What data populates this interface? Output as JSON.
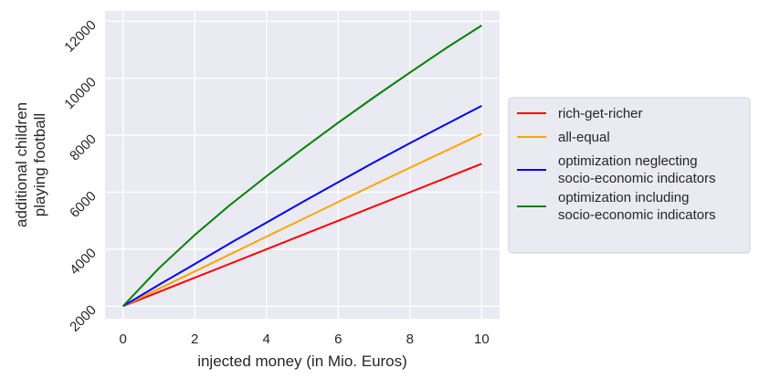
{
  "chart_data": {
    "type": "line",
    "xlabel": "injected money (in Mio. Euros)",
    "ylabel": [
      "additional children",
      "playing football"
    ],
    "xlim": [
      -0.5,
      10.5
    ],
    "ylim": [
      1560,
      12360
    ],
    "xticks": [
      0,
      2,
      4,
      6,
      8,
      10
    ],
    "yticks": [
      2000,
      4000,
      6000,
      8000,
      10000,
      12000
    ],
    "grid": true,
    "legend_position": "right",
    "background": "#eaeaf2",
    "x": [
      0,
      1,
      2,
      3,
      4,
      5,
      6,
      7,
      8,
      9,
      10
    ],
    "series": [
      {
        "name": "rich-get-richer",
        "color": "#ff0000",
        "values": [
          2000,
          2500,
          3000,
          3500,
          4000,
          4500,
          5000,
          5500,
          6000,
          6500,
          7000
        ]
      },
      {
        "name": "all-equal",
        "color": "#ffa500",
        "values": [
          2000,
          2610,
          3220,
          3830,
          4440,
          5050,
          5660,
          6260,
          6860,
          7450,
          8050
        ]
      },
      {
        "name": "optimization neglecting\n socio-economic indicators",
        "color": "#0000ff",
        "values": [
          2000,
          2750,
          3480,
          4220,
          4930,
          5650,
          6350,
          7050,
          7720,
          8380,
          9030
        ]
      },
      {
        "name": "optimization including\n socio-economic indicators",
        "color": "#008000",
        "values": [
          2000,
          3330,
          4500,
          5570,
          6560,
          7510,
          8440,
          9330,
          10200,
          11050,
          11850
        ]
      }
    ]
  }
}
